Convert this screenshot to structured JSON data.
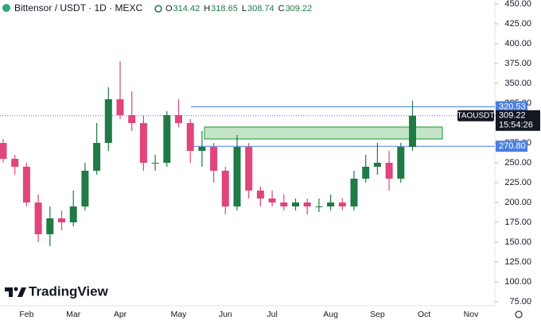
{
  "chart_data": {
    "type": "candlestick",
    "title": "Bittensor / USDT · 1D · MEXC",
    "header_ohlc": [
      {
        "label": "O",
        "value": 314.42
      },
      {
        "label": "H",
        "value": 318.65
      },
      {
        "label": "L",
        "value": 308.74
      },
      {
        "label": "C",
        "value": 309.22
      }
    ],
    "categories": [
      null,
      null,
      "Feb",
      null,
      null,
      null,
      "Mar",
      null,
      null,
      null,
      "Apr",
      null,
      null,
      null,
      null,
      "May",
      null,
      null,
      null,
      "Jun",
      null,
      null,
      null,
      "Jul",
      null,
      null,
      null,
      null,
      "Aug",
      null,
      null,
      null,
      "Sep",
      null,
      null,
      null,
      "Oct",
      null,
      null,
      null,
      "Nov"
    ],
    "open": [
      275,
      255,
      245,
      200,
      160,
      180,
      175,
      195,
      240,
      275,
      330,
      310,
      300,
      250,
      250,
      310,
      300,
      265,
      270,
      240,
      195,
      270,
      215,
      205,
      200,
      195,
      200,
      195,
      195,
      200,
      195,
      230,
      245,
      250,
      230,
      270,
      null,
      null,
      null,
      null,
      null
    ],
    "high": [
      280,
      260,
      250,
      210,
      195,
      190,
      215,
      250,
      300,
      345,
      378,
      340,
      310,
      260,
      315,
      330,
      305,
      290,
      275,
      245,
      285,
      275,
      220,
      215,
      210,
      205,
      205,
      205,
      210,
      205,
      240,
      260,
      275,
      265,
      275,
      328,
      null,
      null,
      null,
      null,
      null
    ],
    "low": [
      250,
      235,
      195,
      150,
      145,
      165,
      170,
      190,
      235,
      265,
      305,
      290,
      240,
      240,
      245,
      295,
      250,
      245,
      225,
      185,
      190,
      205,
      195,
      195,
      190,
      190,
      185,
      188,
      190,
      190,
      190,
      225,
      235,
      215,
      225,
      265,
      null,
      null,
      null,
      null,
      null
    ],
    "close": [
      255,
      245,
      200,
      160,
      180,
      175,
      195,
      240,
      275,
      330,
      310,
      300,
      250,
      250,
      310,
      300,
      265,
      270,
      240,
      195,
      270,
      215,
      205,
      200,
      195,
      200,
      195,
      195,
      200,
      195,
      230,
      245,
      250,
      230,
      270,
      309.22,
      null,
      null,
      null,
      null,
      null
    ],
    "up_color": "#1f7a45",
    "down_color": "#e0457b",
    "ylim": [
      70,
      455
    ],
    "yticks": [
      {
        "value": 450,
        "label": "450.00"
      },
      {
        "value": 425,
        "label": "425.00"
      },
      {
        "value": 400,
        "label": "400.00"
      },
      {
        "value": 375,
        "label": "375.00"
      },
      {
        "value": 350,
        "label": "350.00"
      },
      {
        "value": 325,
        "label": "325.00"
      },
      {
        "value": 300,
        "label": "300.00"
      },
      {
        "value": 275,
        "label": "275.00"
      },
      {
        "value": 250,
        "label": "250.00"
      },
      {
        "value": 225,
        "label": "225.00"
      },
      {
        "value": 200,
        "label": "200.00"
      },
      {
        "value": 175,
        "label": "175.00"
      },
      {
        "value": 150,
        "label": "150.00"
      },
      {
        "value": 125,
        "label": "125.00"
      },
      {
        "value": 100,
        "label": "100.00"
      },
      {
        "value": 75,
        "label": "75.00"
      }
    ],
    "levels": [
      320.53,
      {
        "value": 270.8,
        "label": "270.80"
      }
    ],
    "level_color": "#4a7fe0",
    "zone": [
      280,
      295
    ],
    "zone_color": "#3aa54a",
    "symbol": "TAOUSDT",
    "last_price": 309.22,
    "countdown": "15:54:26",
    "brand": "TradingView"
  }
}
